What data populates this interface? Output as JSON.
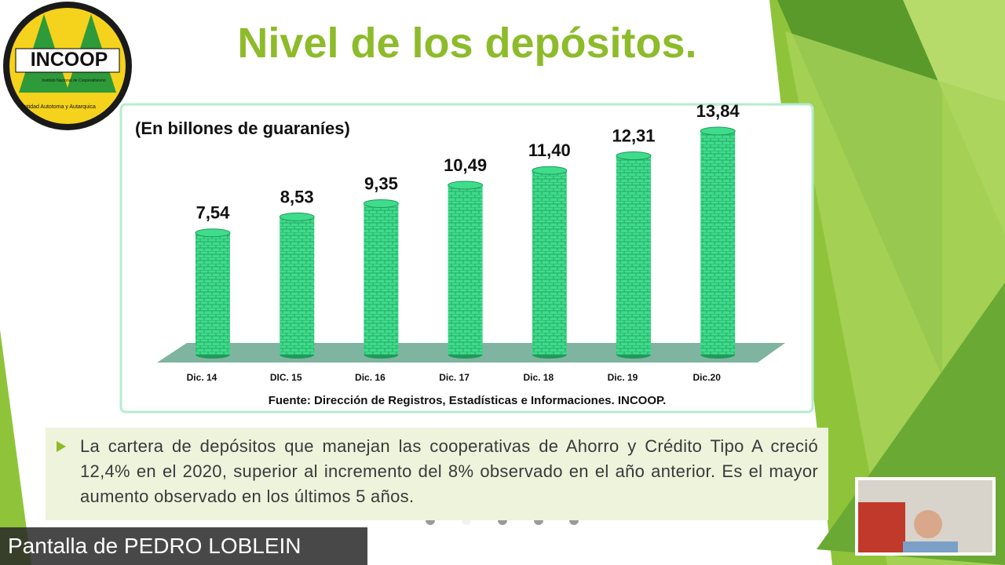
{
  "logo": {
    "name": "INCOOP",
    "subtitle": "Instituto Nacional de Cooperativismo",
    "motto": "Entidad Autotoma y Autarquica"
  },
  "slide": {
    "title": "Nivel de los depósitos."
  },
  "chart_data": {
    "type": "bar",
    "subtitle": "(En billones de guaraníes)",
    "categories": [
      "Dic. 14",
      "DIC. 15",
      "Dic. 16",
      "Dic. 17",
      "Dic. 18",
      "Dic. 19",
      "Dic.20"
    ],
    "values": [
      7.54,
      8.53,
      9.35,
      10.49,
      11.4,
      12.31,
      13.84
    ],
    "value_labels": [
      "7,54",
      "8,53",
      "9,35",
      "10,49",
      "11,40",
      "12,31",
      "13,84"
    ],
    "color": "#3fdc8c",
    "source": "Fuente:  Dirección de Registros, Estadísticas e Informaciones. INCOOP."
  },
  "caption": {
    "text": "La cartera de depósitos que manejan las cooperativas de Ahorro y Crédito Tipo A creció 12,4% en el 2020, superior al incremento del 8% observado en el año anterior. Es el mayor aumento observado en los últimos 5 años."
  },
  "screen_share": {
    "label": "Pantalla de PEDRO LOBLEIN"
  }
}
